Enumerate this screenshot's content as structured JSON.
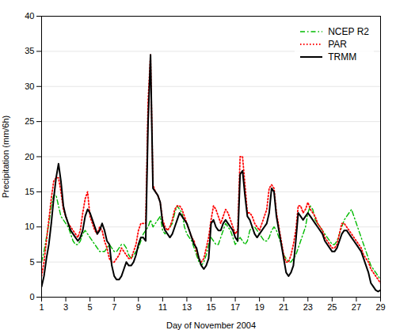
{
  "chart_data": {
    "type": "line",
    "xlabel": "Day of November 2004",
    "ylabel": "Precipitation (mm/6h)",
    "xlim": [
      1,
      29
    ],
    "ylim": [
      0,
      40
    ],
    "xticks": [
      1,
      3,
      5,
      7,
      9,
      11,
      13,
      15,
      17,
      19,
      21,
      23,
      25,
      27,
      29
    ],
    "yticks": [
      0,
      5,
      10,
      15,
      20,
      25,
      30,
      35,
      40
    ],
    "grid": "y",
    "legend": "upper right",
    "x": [
      1,
      1.2,
      1.4,
      1.6,
      1.8,
      2,
      2.2,
      2.4,
      2.6,
      2.8,
      3,
      3.2,
      3.4,
      3.6,
      3.8,
      4,
      4.2,
      4.4,
      4.6,
      4.8,
      5,
      5.2,
      5.4,
      5.6,
      5.8,
      6,
      6.2,
      6.4,
      6.6,
      6.8,
      7,
      7.2,
      7.4,
      7.6,
      7.8,
      8,
      8.2,
      8.4,
      8.6,
      8.8,
      9,
      9.2,
      9.4,
      9.6,
      9.8,
      10,
      10.2,
      10.4,
      10.6,
      10.8,
      11,
      11.2,
      11.4,
      11.6,
      11.8,
      12,
      12.2,
      12.4,
      12.6,
      12.8,
      13,
      13.2,
      13.4,
      13.6,
      13.8,
      14,
      14.2,
      14.4,
      14.6,
      14.8,
      15,
      15.2,
      15.4,
      15.6,
      15.8,
      16,
      16.2,
      16.4,
      16.6,
      16.8,
      17,
      17.2,
      17.4,
      17.6,
      17.8,
      18,
      18.2,
      18.4,
      18.6,
      18.8,
      19,
      19.2,
      19.4,
      19.6,
      19.8,
      20,
      20.2,
      20.4,
      20.6,
      20.8,
      21,
      21.2,
      21.4,
      21.6,
      21.8,
      22,
      22.2,
      22.4,
      22.6,
      22.8,
      23,
      23.2,
      23.4,
      23.6,
      23.8,
      24,
      24.2,
      24.4,
      24.6,
      24.8,
      25,
      25.2,
      25.4,
      25.6,
      25.8,
      26,
      26.2,
      26.4,
      26.6,
      26.8,
      27,
      27.2,
      27.4,
      27.6,
      27.8,
      28,
      28.2,
      28.4,
      28.6,
      28.8,
      29
    ],
    "series": [
      {
        "name": "NCEP R2",
        "color": "#00bb00",
        "line_style": "dashdot",
        "values": [
          5.0,
          6.5,
          8.5,
          10.5,
          13.0,
          14.5,
          14.5,
          13.0,
          11.5,
          11.0,
          10.5,
          10.0,
          9.0,
          8.0,
          7.5,
          7.5,
          8.0,
          9.0,
          9.5,
          9.0,
          8.5,
          8.0,
          7.5,
          7.0,
          6.5,
          6.5,
          6.5,
          7.0,
          7.5,
          7.0,
          6.5,
          6.5,
          7.0,
          7.5,
          7.5,
          7.0,
          6.0,
          5.5,
          6.0,
          6.5,
          7.0,
          8.0,
          9.0,
          9.5,
          10.0,
          11.0,
          10.0,
          10.5,
          11.0,
          11.5,
          9.5,
          9.0,
          9.5,
          10.0,
          10.5,
          12.0,
          13.0,
          12.5,
          12.0,
          10.0,
          9.0,
          8.5,
          8.0,
          7.0,
          6.0,
          5.0,
          4.5,
          5.0,
          6.0,
          7.5,
          8.5,
          8.0,
          7.5,
          7.5,
          8.5,
          9.5,
          10.5,
          10.0,
          9.5,
          8.5,
          7.5,
          8.0,
          8.5,
          8.0,
          7.5,
          8.0,
          9.5,
          10.0,
          10.0,
          9.5,
          9.0,
          8.5,
          8.0,
          8.0,
          8.5,
          9.5,
          10.0,
          9.5,
          8.5,
          7.5,
          6.0,
          5.5,
          5.0,
          5.0,
          5.5,
          6.0,
          7.0,
          8.0,
          9.0,
          10.0,
          12.0,
          13.0,
          12.5,
          11.0,
          10.5,
          10.0,
          9.5,
          9.0,
          8.5,
          8.0,
          7.5,
          7.5,
          8.0,
          9.0,
          10.0,
          11.0,
          11.5,
          12.0,
          12.5,
          11.5,
          10.5,
          9.5,
          8.5,
          7.5,
          6.5,
          5.5,
          4.5,
          4.0,
          3.5,
          3.0,
          2.5
        ]
      },
      {
        "name": "PAR",
        "color": "#ff0000",
        "line_style": "dotted",
        "values": [
          3.0,
          5.0,
          8.0,
          11.0,
          14.0,
          16.5,
          17.0,
          17.0,
          15.0,
          12.5,
          11.5,
          10.5,
          10.0,
          9.5,
          9.0,
          8.5,
          9.5,
          12.0,
          14.0,
          15.0,
          11.5,
          10.5,
          9.5,
          9.0,
          10.0,
          9.5,
          8.0,
          7.0,
          5.5,
          5.0,
          5.0,
          5.5,
          6.0,
          7.0,
          6.5,
          6.0,
          5.5,
          5.5,
          6.5,
          7.5,
          9.5,
          10.5,
          10.5,
          10.5,
          28.0,
          34.5,
          16.0,
          15.0,
          14.5,
          13.5,
          11.0,
          10.0,
          9.5,
          10.0,
          11.0,
          12.5,
          13.0,
          13.0,
          12.5,
          11.5,
          10.5,
          9.5,
          8.5,
          8.0,
          6.5,
          5.5,
          5.0,
          5.5,
          7.0,
          8.5,
          11.0,
          13.0,
          12.5,
          11.5,
          10.5,
          11.5,
          12.5,
          12.0,
          11.0,
          10.0,
          9.0,
          9.5,
          20.0,
          20.0,
          16.0,
          12.0,
          12.0,
          11.5,
          10.5,
          10.0,
          9.5,
          10.5,
          11.5,
          12.5,
          15.5,
          16.0,
          15.5,
          12.0,
          10.0,
          8.0,
          6.0,
          5.0,
          5.0,
          6.0,
          7.5,
          9.5,
          13.0,
          13.0,
          12.0,
          12.5,
          13.5,
          12.5,
          12.0,
          11.5,
          10.5,
          10.0,
          9.5,
          8.5,
          8.0,
          7.5,
          7.0,
          7.0,
          7.5,
          9.0,
          10.5,
          10.5,
          10.0,
          9.5,
          9.0,
          8.5,
          8.0,
          7.5,
          7.0,
          6.0,
          5.5,
          5.0,
          4.0,
          3.5,
          3.0,
          2.5,
          2.0
        ]
      },
      {
        "name": "TRMM",
        "color": "#000000",
        "line_style": "solid",
        "values": [
          1.5,
          3.0,
          5.5,
          7.5,
          10.5,
          14.0,
          17.0,
          19.0,
          16.5,
          13.0,
          11.5,
          10.5,
          9.5,
          9.0,
          8.5,
          8.0,
          8.5,
          9.5,
          11.5,
          12.5,
          12.0,
          11.0,
          10.0,
          9.0,
          9.5,
          10.5,
          9.5,
          8.0,
          7.5,
          4.5,
          3.0,
          2.5,
          2.5,
          3.0,
          4.0,
          5.0,
          4.5,
          4.5,
          5.0,
          6.0,
          7.5,
          8.5,
          8.5,
          8.0,
          25.0,
          34.5,
          15.5,
          15.0,
          14.5,
          13.5,
          10.5,
          9.5,
          9.0,
          8.5,
          9.0,
          10.0,
          11.0,
          12.0,
          11.5,
          11.0,
          10.5,
          9.5,
          8.5,
          7.5,
          7.0,
          5.5,
          4.5,
          4.0,
          4.5,
          5.5,
          10.5,
          11.0,
          10.0,
          9.5,
          9.5,
          10.5,
          11.0,
          10.5,
          10.0,
          9.5,
          8.5,
          8.0,
          17.5,
          18.0,
          14.5,
          11.5,
          11.0,
          10.0,
          9.0,
          8.5,
          9.0,
          9.5,
          10.0,
          10.5,
          12.0,
          15.5,
          15.0,
          11.5,
          9.5,
          7.5,
          5.5,
          3.5,
          3.0,
          3.5,
          4.5,
          8.0,
          12.0,
          11.5,
          11.0,
          11.5,
          12.0,
          11.5,
          11.0,
          10.5,
          10.0,
          9.5,
          9.0,
          8.0,
          7.5,
          7.0,
          6.5,
          6.5,
          7.0,
          8.0,
          9.0,
          9.5,
          9.5,
          9.0,
          8.5,
          8.0,
          7.5,
          7.0,
          6.5,
          5.5,
          4.5,
          3.5,
          2.0,
          1.5,
          1.0,
          0.8,
          1.0
        ]
      }
    ]
  }
}
